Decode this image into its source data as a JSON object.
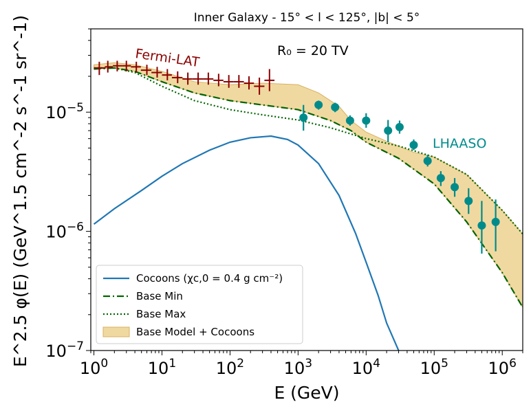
{
  "chart_data": {
    "type": "line",
    "title": "Inner Galaxy - 15° < l < 125°, |b| < 5°",
    "xlabel": "E (GeV)",
    "ylabel": "E^2.5 φ(E) (GeV^1.5 cm^-2 s^-1 sr^-1)",
    "xscale": "log",
    "yscale": "log",
    "xlim": [
      0.9,
      2000000
    ],
    "ylim": [
      1e-07,
      5e-05
    ],
    "x_ticks": [
      {
        "value": 1,
        "base": "10",
        "exp": "0"
      },
      {
        "value": 10,
        "base": "10",
        "exp": "1"
      },
      {
        "value": 100,
        "base": "10",
        "exp": "2"
      },
      {
        "value": 1000,
        "base": "10",
        "exp": "3"
      },
      {
        "value": 10000,
        "base": "10",
        "exp": "4"
      },
      {
        "value": 100000,
        "base": "10",
        "exp": "5"
      },
      {
        "value": 1000000,
        "base": "10",
        "exp": "6"
      }
    ],
    "y_ticks": [
      {
        "value": 1e-07,
        "base": "10",
        "exp": "−7"
      },
      {
        "value": 1e-06,
        "base": "10",
        "exp": "−6"
      },
      {
        "value": 1e-05,
        "base": "10",
        "exp": "−5"
      }
    ],
    "annotations": {
      "r0": "R₀ = 20 TV",
      "fermi": "Fermi-LAT",
      "lhaaso": "LHAASO"
    },
    "colors": {
      "cocoons": "#1f77b4",
      "base": "#006400",
      "band_fill": "#f0d9a0",
      "band_edge": "#d8b060",
      "fermi": "#8b0000",
      "lhaaso": "#008b8b"
    },
    "legend": [
      {
        "label": "Cocoons (χc,0 = 0.4 g cm⁻²)",
        "style": "solid",
        "color": "#1f77b4"
      },
      {
        "label": "Base Min",
        "style": "dashdot",
        "color": "#006400"
      },
      {
        "label": "Base Max",
        "style": "dotted",
        "color": "#006400"
      },
      {
        "label": "Base Model + Cocoons",
        "style": "patch",
        "color": "#f0d9a0"
      }
    ],
    "series": [
      {
        "name": "Cocoons",
        "x": [
          1,
          2,
          5,
          10,
          20,
          50,
          100,
          200,
          400,
          700,
          1000,
          2000,
          4000,
          7000,
          10000,
          15000,
          20000,
          30000
        ],
        "y": [
          1.15e-06,
          1.55e-06,
          2.2e-06,
          2.9e-06,
          3.7e-06,
          4.8e-06,
          5.6e-06,
          6.1e-06,
          6.3e-06,
          5.9e-06,
          5.3e-06,
          3.7e-06,
          2e-06,
          9.6e-07,
          5.5e-07,
          2.9e-07,
          1.7e-07,
          1e-07
        ]
      },
      {
        "name": "Base Min",
        "x": [
          1,
          2,
          4,
          10,
          30,
          100,
          300,
          1000,
          3000,
          6000,
          10000,
          30000,
          100000,
          300000,
          1000000,
          2000000
        ],
        "y": [
          2.3e-05,
          2.35e-05,
          2.2e-05,
          1.8e-05,
          1.45e-05,
          1.25e-05,
          1.15e-05,
          1.05e-05,
          8.5e-06,
          7e-06,
          5.6e-06,
          4.1e-06,
          2.5e-06,
          1.2e-06,
          4.5e-07,
          2.3e-07
        ]
      },
      {
        "name": "Base Max",
        "x": [
          1,
          2,
          4,
          10,
          30,
          100,
          300,
          1000,
          3000,
          10000,
          30000,
          100000,
          300000,
          1000000,
          2000000
        ],
        "y": [
          2.35e-05,
          2.35e-05,
          2.15e-05,
          1.65e-05,
          1.25e-05,
          1.05e-05,
          9.5e-06,
          8.6e-06,
          7.4e-06,
          6e-06,
          5.2e-06,
          4.2e-06,
          3e-06,
          1.5e-06,
          9.5e-07
        ]
      },
      {
        "name": "Band upper",
        "x": [
          1,
          2,
          4,
          10,
          30,
          100,
          300,
          1000,
          2000,
          4000,
          6000,
          10000,
          20000,
          50000,
          100000,
          300000,
          1000000,
          2000000
        ],
        "y": [
          2.5e-05,
          2.6e-05,
          2.5e-05,
          2.2e-05,
          1.8e-05,
          1.7e-05,
          1.75e-05,
          1.7e-05,
          1.45e-05,
          1.12e-05,
          8.5e-06,
          6.8e-06,
          5.7e-06,
          4.6e-06,
          4.2e-06,
          3e-06,
          1.5e-06,
          9.5e-07
        ]
      },
      {
        "name": "Band lower",
        "x": [
          1,
          2,
          4,
          10,
          30,
          100,
          300,
          1000,
          3000,
          6000,
          10000,
          30000,
          100000,
          300000,
          1000000,
          2000000
        ],
        "y": [
          2.3e-05,
          2.35e-05,
          2.2e-05,
          1.8e-05,
          1.45e-05,
          1.25e-05,
          1.15e-05,
          1.05e-05,
          8.5e-06,
          7e-06,
          5.6e-06,
          4.1e-06,
          2.5e-06,
          1.2e-06,
          4.5e-07,
          2.3e-07
        ]
      }
    ],
    "fermi_points": [
      {
        "x": 1.2,
        "y": 2.35e-05,
        "xlo": 1.0,
        "xhi": 1.45,
        "ylo": 2.05e-05,
        "yhi": 2.65e-05
      },
      {
        "x": 1.6,
        "y": 2.4e-05,
        "xlo": 1.45,
        "xhi": 1.9,
        "ylo": 2.15e-05,
        "yhi": 2.7e-05
      },
      {
        "x": 2.2,
        "y": 2.45e-05,
        "xlo": 1.9,
        "xhi": 2.6,
        "ylo": 2.2e-05,
        "yhi": 2.7e-05
      },
      {
        "x": 3.0,
        "y": 2.45e-05,
        "xlo": 2.6,
        "xhi": 3.5,
        "ylo": 2.2e-05,
        "yhi": 2.7e-05
      },
      {
        "x": 4.2,
        "y": 2.4e-05,
        "xlo": 3.5,
        "xhi": 4.9,
        "ylo": 2.15e-05,
        "yhi": 2.65e-05
      },
      {
        "x": 6.0,
        "y": 2.25e-05,
        "xlo": 4.9,
        "xhi": 7.0,
        "ylo": 2.05e-05,
        "yhi": 2.5e-05
      },
      {
        "x": 8.5,
        "y": 2.15e-05,
        "xlo": 7.0,
        "xhi": 10,
        "ylo": 1.95e-05,
        "yhi": 2.4e-05
      },
      {
        "x": 12,
        "y": 2.05e-05,
        "xlo": 10,
        "xhi": 14,
        "ylo": 1.85e-05,
        "yhi": 2.3e-05
      },
      {
        "x": 17,
        "y": 1.95e-05,
        "xlo": 14,
        "xhi": 20,
        "ylo": 1.75e-05,
        "yhi": 2.2e-05
      },
      {
        "x": 24,
        "y": 1.9e-05,
        "xlo": 20,
        "xhi": 28,
        "ylo": 1.7e-05,
        "yhi": 2.15e-05
      },
      {
        "x": 34,
        "y": 1.9e-05,
        "xlo": 28,
        "xhi": 40,
        "ylo": 1.7e-05,
        "yhi": 2.15e-05
      },
      {
        "x": 48,
        "y": 1.9e-05,
        "xlo": 40,
        "xhi": 57,
        "ylo": 1.7e-05,
        "yhi": 2.15e-05
      },
      {
        "x": 68,
        "y": 1.85e-05,
        "xlo": 57,
        "xhi": 80,
        "ylo": 1.65e-05,
        "yhi": 2.1e-05
      },
      {
        "x": 96,
        "y": 1.8e-05,
        "xlo": 80,
        "xhi": 113,
        "ylo": 1.6e-05,
        "yhi": 2.05e-05
      },
      {
        "x": 135,
        "y": 1.8e-05,
        "xlo": 113,
        "xhi": 160,
        "ylo": 1.6e-05,
        "yhi": 2.05e-05
      },
      {
        "x": 190,
        "y": 1.75e-05,
        "xlo": 160,
        "xhi": 225,
        "ylo": 1.55e-05,
        "yhi": 2e-05
      },
      {
        "x": 270,
        "y": 1.65e-05,
        "xlo": 225,
        "xhi": 320,
        "ylo": 1.4e-05,
        "yhi": 1.95e-05
      },
      {
        "x": 380,
        "y": 1.85e-05,
        "xlo": 320,
        "xhi": 450,
        "ylo": 1.5e-05,
        "yhi": 2.3e-05
      }
    ],
    "lhaaso_points": [
      {
        "x": 1200,
        "y": 9e-06,
        "ylo": 7e-06,
        "yhi": 1.15e-05
      },
      {
        "x": 2000,
        "y": 1.15e-05,
        "ylo": 1.05e-05,
        "yhi": 1.25e-05
      },
      {
        "x": 3500,
        "y": 1.1e-05,
        "ylo": 1e-05,
        "yhi": 1.2e-05
      },
      {
        "x": 5800,
        "y": 8.5e-06,
        "ylo": 7.7e-06,
        "yhi": 9.4e-06
      },
      {
        "x": 10000,
        "y": 8.5e-06,
        "ylo": 7.4e-06,
        "yhi": 9.8e-06
      },
      {
        "x": 21000,
        "y": 7e-06,
        "ylo": 5.6e-06,
        "yhi": 8.6e-06
      },
      {
        "x": 31000,
        "y": 7.5e-06,
        "ylo": 6.6e-06,
        "yhi": 8.5e-06
      },
      {
        "x": 50000,
        "y": 5.3e-06,
        "ylo": 4.8e-06,
        "yhi": 5.9e-06
      },
      {
        "x": 80000,
        "y": 3.9e-06,
        "ylo": 3.5e-06,
        "yhi": 4.4e-06
      },
      {
        "x": 125000,
        "y": 2.8e-06,
        "ylo": 2.4e-06,
        "yhi": 3.2e-06
      },
      {
        "x": 200000,
        "y": 2.35e-06,
        "ylo": 1.95e-06,
        "yhi": 2.8e-06
      },
      {
        "x": 320000,
        "y": 1.8e-06,
        "ylo": 1.4e-06,
        "yhi": 2.3e-06
      },
      {
        "x": 500000,
        "y": 1.12e-06,
        "ylo": 6.5e-07,
        "yhi": 1.8e-06
      },
      {
        "x": 800000,
        "y": 1.2e-06,
        "ylo": 6.8e-07,
        "yhi": 1.85e-06
      }
    ]
  }
}
